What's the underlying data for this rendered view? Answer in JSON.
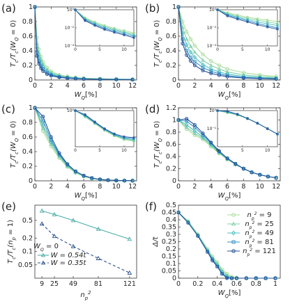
{
  "figure": {
    "background": "#ffffff"
  },
  "series_styles": [
    {
      "color": "#a8dc9a",
      "marker": "circle"
    },
    {
      "color": "#7fd0a8",
      "marker": "triangle"
    },
    {
      "color": "#4ebdc0",
      "marker": "diamond"
    },
    {
      "color": "#2f8fc2",
      "marker": "square"
    },
    {
      "color": "#23529a",
      "marker": "hexagon"
    }
  ],
  "chart_data": [
    {
      "id": "a",
      "panel_label": "(a)",
      "type": "line",
      "ylabel": "T_c/T_c(W_Q = 0)",
      "xlabel": "W_Q[%]",
      "xlim": [
        0,
        12.5
      ],
      "ylim": [
        0,
        1
      ],
      "xticks": [
        0,
        2,
        4,
        6,
        8,
        10,
        12
      ],
      "yticks": [
        0,
        0.2,
        0.4,
        0.6,
        0.8,
        1
      ],
      "ytick_labels": [
        "0",
        "0.2",
        "0.4",
        "0.6",
        "0.8",
        "1"
      ],
      "x": [
        0,
        0.25,
        0.5,
        0.75,
        1,
        1.5,
        2,
        3,
        4,
        5,
        6,
        8,
        10,
        12
      ],
      "series": [
        {
          "values": [
            1,
            0.58,
            0.42,
            0.32,
            0.25,
            0.17,
            0.12,
            0.07,
            0.05,
            0.035,
            0.025,
            0.018,
            0.013,
            0.01
          ]
        },
        {
          "values": [
            1,
            0.5,
            0.36,
            0.27,
            0.21,
            0.14,
            0.1,
            0.06,
            0.04,
            0.03,
            0.021,
            0.015,
            0.011,
            0.008
          ]
        },
        {
          "values": [
            1,
            0.44,
            0.31,
            0.23,
            0.18,
            0.12,
            0.085,
            0.05,
            0.035,
            0.025,
            0.018,
            0.012,
            0.009,
            0.007
          ]
        },
        {
          "values": [
            1,
            0.38,
            0.26,
            0.19,
            0.15,
            0.1,
            0.07,
            0.042,
            0.029,
            0.021,
            0.015,
            0.01,
            0.008,
            0.006
          ]
        },
        {
          "values": [
            1,
            0.33,
            0.22,
            0.16,
            0.12,
            0.08,
            0.058,
            0.035,
            0.024,
            0.017,
            0.012,
            0.009,
            0.006,
            0.005
          ]
        }
      ],
      "inset": {
        "type": "line",
        "yscale": "log",
        "xlim": [
          0,
          12
        ],
        "ylim": [
          0.0001,
          1
        ],
        "xticks": [
          0,
          5,
          10
        ],
        "yticks": [
          1,
          0.01,
          0.0001
        ],
        "ytick_labels": [
          "10⁰",
          "10⁻²",
          "10⁻⁴"
        ],
        "x": [
          0,
          2,
          4,
          6,
          8,
          10,
          12
        ],
        "series": [
          {
            "values": [
              1,
              0.13,
              0.045,
              0.018,
              0.009,
              0.005,
              0.0028
            ]
          },
          {
            "values": [
              1,
              0.11,
              0.036,
              0.014,
              0.007,
              0.0037,
              0.002
            ]
          },
          {
            "values": [
              1,
              0.09,
              0.029,
              0.011,
              0.0055,
              0.0029,
              0.0015
            ]
          },
          {
            "values": [
              1,
              0.075,
              0.023,
              0.0085,
              0.0042,
              0.0021,
              0.0011
            ]
          },
          {
            "values": [
              1,
              0.062,
              0.018,
              0.0065,
              0.0031,
              0.0016,
              0.0008
            ]
          }
        ]
      }
    },
    {
      "id": "b",
      "panel_label": "(b)",
      "type": "line",
      "ylabel": "T_c/T_c(W_Q = 0)",
      "xlabel": "W_Q[%]",
      "xlim": [
        0,
        12.5
      ],
      "ylim": [
        0,
        1
      ],
      "xticks": [
        0,
        2,
        4,
        6,
        8,
        10,
        12
      ],
      "yticks": [
        0,
        0.2,
        0.4,
        0.6,
        0.8,
        1
      ],
      "ytick_labels": [
        "0",
        "0.2",
        "0.4",
        "0.6",
        "0.8",
        "1"
      ],
      "x": [
        0,
        0.5,
        1,
        1.5,
        2,
        3,
        4,
        5,
        6,
        8,
        10,
        12
      ],
      "series": [
        {
          "values": [
            1,
            0.8,
            0.66,
            0.56,
            0.47,
            0.35,
            0.26,
            0.2,
            0.15,
            0.1,
            0.07,
            0.05
          ]
        },
        {
          "values": [
            1,
            0.72,
            0.56,
            0.46,
            0.38,
            0.27,
            0.2,
            0.15,
            0.11,
            0.07,
            0.05,
            0.035
          ]
        },
        {
          "values": [
            1,
            0.64,
            0.48,
            0.38,
            0.31,
            0.21,
            0.15,
            0.11,
            0.08,
            0.05,
            0.035,
            0.025
          ]
        },
        {
          "values": [
            1,
            0.56,
            0.4,
            0.31,
            0.25,
            0.17,
            0.12,
            0.085,
            0.06,
            0.035,
            0.024,
            0.017
          ]
        },
        {
          "values": [
            1,
            0.5,
            0.34,
            0.26,
            0.2,
            0.13,
            0.09,
            0.065,
            0.045,
            0.027,
            0.018,
            0.012
          ]
        }
      ],
      "inset": {
        "type": "line",
        "yscale": "log",
        "xlim": [
          0,
          12
        ],
        "ylim": [
          0.0001,
          1
        ],
        "xticks": [
          0,
          5,
          10
        ],
        "yticks": [
          1,
          0.01,
          0.0001
        ],
        "ytick_labels": [
          "10⁰",
          "10⁻²",
          "10⁻⁴"
        ],
        "x": [
          0,
          2,
          4,
          6,
          8,
          10,
          12
        ],
        "series": [
          {
            "values": [
              1,
              0.47,
              0.26,
              0.15,
              0.1,
              0.07,
              0.05
            ]
          },
          {
            "values": [
              1,
              0.38,
              0.2,
              0.11,
              0.07,
              0.045,
              0.03
            ]
          },
          {
            "values": [
              1,
              0.31,
              0.15,
              0.08,
              0.045,
              0.028,
              0.018
            ]
          },
          {
            "values": [
              1,
              0.25,
              0.12,
              0.06,
              0.03,
              0.017,
              0.01
            ]
          },
          {
            "values": [
              1,
              0.2,
              0.09,
              0.045,
              0.022,
              0.012,
              0.007
            ]
          }
        ]
      }
    },
    {
      "id": "c",
      "panel_label": "(c)",
      "type": "line",
      "ylabel": "T_c/T_c(W_Q = 0)",
      "xlabel": "W_Q[%]",
      "xlim": [
        0,
        12.5
      ],
      "ylim": [
        0,
        1
      ],
      "xticks": [
        0,
        2,
        4,
        6,
        8,
        10,
        12
      ],
      "yticks": [
        0,
        0.2,
        0.4,
        0.6,
        0.8,
        1
      ],
      "ytick_labels": [
        "0",
        "0.2",
        "0.4",
        "0.6",
        "0.8",
        "1"
      ],
      "x": [
        0,
        1,
        2,
        3,
        4,
        5,
        6,
        7,
        8,
        9,
        10,
        11,
        12
      ],
      "series": [
        {
          "values": [
            1,
            0.68,
            0.47,
            0.31,
            0.19,
            0.11,
            0.06,
            0.03,
            0.015,
            0.008,
            0.005,
            0.003,
            0.002
          ]
        },
        {
          "values": [
            1,
            0.72,
            0.5,
            0.33,
            0.2,
            0.12,
            0.065,
            0.035,
            0.017,
            0.009,
            0.005,
            0.003,
            0.002
          ]
        },
        {
          "values": [
            1,
            0.76,
            0.53,
            0.35,
            0.21,
            0.12,
            0.068,
            0.036,
            0.018,
            0.009,
            0.005,
            0.003,
            0.002
          ]
        },
        {
          "values": [
            1,
            0.82,
            0.56,
            0.36,
            0.22,
            0.13,
            0.07,
            0.037,
            0.019,
            0.01,
            0.005,
            0.003,
            0.002
          ]
        },
        {
          "values": [
            1,
            0.88,
            0.6,
            0.38,
            0.23,
            0.13,
            0.072,
            0.038,
            0.02,
            0.01,
            0.006,
            0.003,
            0.002
          ]
        }
      ],
      "inset": {
        "type": "line",
        "yscale": "log",
        "xlim": [
          0,
          12
        ],
        "ylim": [
          0.01,
          1
        ],
        "xticks": [
          0,
          5,
          10
        ],
        "yticks": [
          1
        ],
        "ytick_labels": [
          "10⁰"
        ],
        "x": [
          0,
          2,
          4,
          6,
          8,
          10,
          12
        ],
        "series": [
          {
            "values": [
              1,
              0.45,
              0.19,
              0.08,
              0.04,
              0.025,
              0.02
            ]
          },
          {
            "values": [
              1,
              0.48,
              0.2,
              0.085,
              0.042,
              0.027,
              0.022
            ]
          },
          {
            "values": [
              1,
              0.51,
              0.21,
              0.09,
              0.045,
              0.029,
              0.024
            ]
          },
          {
            "values": [
              1,
              0.55,
              0.22,
              0.095,
              0.048,
              0.032,
              0.028
            ]
          },
          {
            "values": [
              1,
              0.6,
              0.24,
              0.1,
              0.052,
              0.036,
              0.032
            ]
          }
        ]
      }
    },
    {
      "id": "d",
      "panel_label": "(d)",
      "type": "line",
      "ylabel": "T_c/T_c(W_Q = 0)",
      "xlabel": "W_Q[%]",
      "xlim": [
        0,
        12.5
      ],
      "ylim": [
        0,
        1.2
      ],
      "xticks": [
        0,
        2,
        4,
        6,
        8,
        10,
        12
      ],
      "yticks": [
        0,
        0.2,
        0.4,
        0.6,
        0.8,
        1,
        1.2
      ],
      "ytick_labels": [
        "0",
        "0.2",
        "0.4",
        "0.6",
        "0.8",
        "1",
        "1.2"
      ],
      "x": [
        0,
        1,
        2,
        3,
        4,
        5,
        6,
        7,
        8,
        9,
        10,
        11,
        12
      ],
      "series": [
        {
          "values": [
            1,
            0.85,
            0.75,
            0.68,
            0.56,
            0.45,
            0.35,
            0.27,
            0.2,
            0.14,
            0.1,
            0.07,
            0.05
          ]
        },
        {
          "values": [
            1,
            0.88,
            0.78,
            0.7,
            0.58,
            0.46,
            0.36,
            0.27,
            0.2,
            0.14,
            0.1,
            0.07,
            0.05
          ]
        },
        {
          "values": [
            1,
            0.92,
            0.82,
            0.72,
            0.6,
            0.47,
            0.36,
            0.27,
            0.2,
            0.14,
            0.1,
            0.07,
            0.05
          ]
        },
        {
          "values": [
            1,
            0.98,
            0.88,
            0.75,
            0.62,
            0.48,
            0.37,
            0.28,
            0.2,
            0.14,
            0.1,
            0.07,
            0.05
          ]
        },
        {
          "values": [
            1,
            1.02,
            0.92,
            0.78,
            0.63,
            0.49,
            0.37,
            0.28,
            0.2,
            0.14,
            0.1,
            0.07,
            0.05
          ]
        }
      ],
      "inset": {
        "type": "line",
        "yscale": "log",
        "xlim": [
          0,
          12
        ],
        "ylim": [
          0.01,
          1
        ],
        "xticks": [
          0,
          5,
          10
        ],
        "yticks": [
          1,
          0.1
        ],
        "ytick_labels": [
          "10⁰",
          "10⁻¹"
        ],
        "x": [
          0,
          2,
          4,
          6,
          8,
          10,
          12
        ],
        "series": [
          {
            "values": [
              1,
              0.75,
              0.56,
              0.35,
              0.2,
              0.1,
              0.05
            ]
          },
          {
            "values": [
              1,
              0.78,
              0.58,
              0.36,
              0.2,
              0.1,
              0.05
            ]
          },
          {
            "values": [
              1,
              0.82,
              0.6,
              0.36,
              0.2,
              0.1,
              0.05
            ]
          },
          {
            "values": [
              1,
              0.88,
              0.62,
              0.37,
              0.2,
              0.1,
              0.05
            ]
          },
          {
            "values": [
              1,
              0.92,
              0.63,
              0.37,
              0.2,
              0.1,
              0.05
            ]
          }
        ]
      }
    },
    {
      "id": "e",
      "panel_label": "(e)",
      "type": "line",
      "yscale": "log",
      "ylabel": "T_c/T_c(n_p = 1)",
      "xlabel": "n_p^2",
      "xlim": [
        0,
        130
      ],
      "ylim": [
        0.025,
        1.1
      ],
      "xticks": [
        9,
        25,
        49,
        81,
        121
      ],
      "xtick_labels": [
        "9",
        "25",
        "49",
        "81",
        "121"
      ],
      "yticks": [
        0.05,
        0.1,
        0.2,
        0.5
      ],
      "ytick_labels": [
        "0.05",
        "0.1",
        "0.2",
        "0.5"
      ],
      "x": [
        9,
        25,
        49,
        81,
        121
      ],
      "legend_title": "W_Q = 0",
      "legend_position": "lower-left",
      "series": [
        {
          "name": "W = 0.54t",
          "color": "#4aaca6",
          "dash": "solid",
          "values": [
            0.82,
            0.68,
            0.5,
            0.32,
            0.19
          ]
        },
        {
          "name": "W = 0.35t",
          "color": "#2b4f8c",
          "dash": "dashed",
          "values": [
            0.42,
            0.22,
            0.13,
            0.07,
            0.033
          ]
        }
      ]
    },
    {
      "id": "f",
      "panel_label": "(f)",
      "type": "line",
      "ylabel": "Δ/t",
      "xlabel": "W_Q[%]",
      "xlim": [
        0,
        1.05
      ],
      "ylim": [
        0,
        0.5
      ],
      "xticks": [
        0,
        0.2,
        0.4,
        0.6,
        0.8,
        1
      ],
      "xtick_labels": [
        "0",
        "0.2",
        "0.4",
        "0.6",
        "0.8",
        "1"
      ],
      "yticks": [
        0,
        0.05,
        0.1,
        0.15,
        0.2,
        0.25,
        0.3,
        0.35,
        0.4,
        0.45,
        0.5
      ],
      "ytick_labels": [
        "0",
        "0.05",
        "0.1",
        "0.15",
        "0.2",
        "0.25",
        "0.3",
        "0.35",
        "0.4",
        "0.45",
        "0.5"
      ],
      "x": [
        0,
        0.1,
        0.2,
        0.3,
        0.35,
        0.4,
        0.45,
        0.5,
        0.55,
        0.6,
        0.7,
        0.8,
        0.9,
        1
      ],
      "legend_position": "top-right",
      "series": [
        {
          "name": "n_p^2 = 9",
          "values": [
            0.45,
            0.39,
            0.3,
            0.2,
            0.15,
            0.11,
            0.06,
            0.03,
            0.01,
            0.002,
            0,
            0,
            0,
            0
          ]
        },
        {
          "name": "n_p^2 = 25",
          "values": [
            0.45,
            0.39,
            0.3,
            0.19,
            0.14,
            0.1,
            0.05,
            0.02,
            0.003,
            0,
            0,
            0,
            0,
            0
          ]
        },
        {
          "name": "n_p^2 = 49",
          "values": [
            0.45,
            0.38,
            0.29,
            0.19,
            0.13,
            0.09,
            0.04,
            0.01,
            0,
            0,
            0,
            0,
            0,
            0
          ]
        },
        {
          "name": "n_p^2 = 81",
          "values": [
            0.45,
            0.38,
            0.29,
            0.18,
            0.13,
            0.08,
            0.03,
            0.005,
            0,
            0,
            0,
            0,
            0,
            0
          ]
        },
        {
          "name": "n_p^2 = 121",
          "values": [
            0.45,
            0.38,
            0.29,
            0.18,
            0.12,
            0.08,
            0.03,
            0,
            0,
            0,
            0,
            0,
            0,
            0
          ]
        }
      ]
    }
  ]
}
